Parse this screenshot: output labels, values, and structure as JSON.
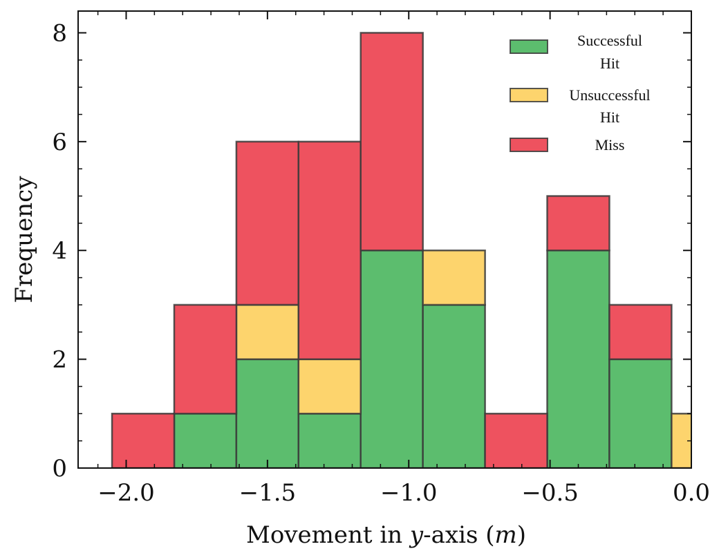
{
  "chart_data": {
    "type": "bar",
    "stacked": true,
    "xlabel": "Movement in y-axis (m)",
    "ylabel": "Frequency",
    "xlim": [
      -2.17,
      0.0
    ],
    "ylim": [
      0,
      8.4
    ],
    "xticks": [
      "−2.0",
      "−1.5",
      "−1.0",
      "−0.5",
      "0.0"
    ],
    "xtick_values": [
      -2.0,
      -1.5,
      -1.0,
      -0.5,
      0.0
    ],
    "yticks": [
      "0",
      "2",
      "4",
      "6",
      "8"
    ],
    "ytick_values": [
      0,
      2,
      4,
      6,
      8
    ],
    "bin_edges": [
      -2.05,
      -1.83,
      -1.61,
      -1.39,
      -1.17,
      -0.95,
      -0.73,
      -0.51,
      -0.29,
      -0.07,
      0.15
    ],
    "series": [
      {
        "name": "Successful Hit",
        "color": "#5cbd6e",
        "values": [
          0,
          1,
          2,
          1,
          4,
          3,
          0,
          4,
          2,
          0
        ]
      },
      {
        "name": "Unsuccessful Hit",
        "color": "#fdd46d",
        "values": [
          0,
          0,
          1,
          1,
          0,
          1,
          0,
          0,
          0,
          1
        ]
      },
      {
        "name": "Miss",
        "color": "#ee525f",
        "values": [
          1,
          2,
          3,
          4,
          4,
          0,
          1,
          1,
          1,
          0
        ]
      }
    ],
    "legend": {
      "placement": "top-right",
      "entries": [
        {
          "line1": "Successful",
          "line2": "Hit"
        },
        {
          "line1": "Unsuccessful",
          "line2": "Hit"
        },
        {
          "line1": "Miss",
          "line2": ""
        }
      ]
    },
    "grid": false,
    "edge_color": "#3a3a3a"
  }
}
